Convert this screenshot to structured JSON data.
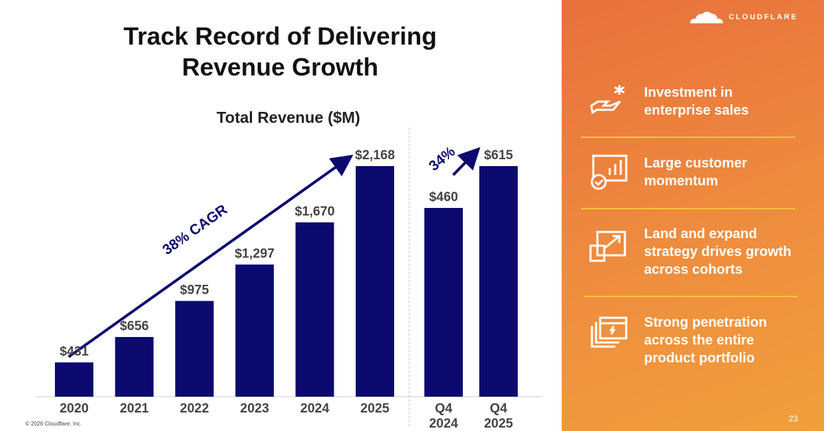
{
  "slide": {
    "title_line1": "Track Record of Delivering",
    "title_line2": "Revenue Growth",
    "copyright": "© 2026 Cloudflare, Inc.",
    "page_number": "23"
  },
  "brand": {
    "logo_text": "CLOUDFLARE",
    "bar_color": "#0c0a6e",
    "panel_color_start": "#e8703c",
    "panel_color_end": "#f1a03c",
    "separator_color": "#f7c33a"
  },
  "chart_data": [
    {
      "type": "bar",
      "title": "Total Revenue ($M)",
      "categories": [
        "2020",
        "2021",
        "2022",
        "2023",
        "2024",
        "2025"
      ],
      "values": [
        431,
        656,
        975,
        1297,
        1670,
        2168
      ],
      "data_labels": [
        "$431",
        "$656",
        "$975",
        "$1,297",
        "$1,670",
        "$2,168"
      ],
      "annotation": "38% CAGR",
      "grid": false,
      "legend": "none"
    },
    {
      "type": "bar",
      "categories": [
        "Q4 2024",
        "Q4 2025"
      ],
      "category_lines": [
        [
          "Q4",
          "2024"
        ],
        [
          "Q4",
          "2025"
        ]
      ],
      "values": [
        460,
        615
      ],
      "data_labels": [
        "$460",
        "$615"
      ],
      "annotation": "34%",
      "grid": false,
      "legend": "none"
    }
  ],
  "highlights": [
    {
      "icon": "hand-sparkle-icon",
      "text": "Investment in enterprise sales",
      "lines": [
        "Investment in",
        "enterprise sales"
      ]
    },
    {
      "icon": "chart-check-icon",
      "text": "Large customer momentum",
      "lines": [
        "Large customer",
        "momentum"
      ]
    },
    {
      "icon": "expand-icon",
      "text": "Land and expand strategy drives growth across cohorts",
      "lines": [
        "Land and expand",
        "strategy drives growth",
        "across cohorts"
      ]
    },
    {
      "icon": "browser-windows-icon",
      "text": "Strong penetration across the entire product portfolio",
      "lines": [
        "Strong penetration",
        "across the entire",
        "product portfolio"
      ]
    }
  ]
}
